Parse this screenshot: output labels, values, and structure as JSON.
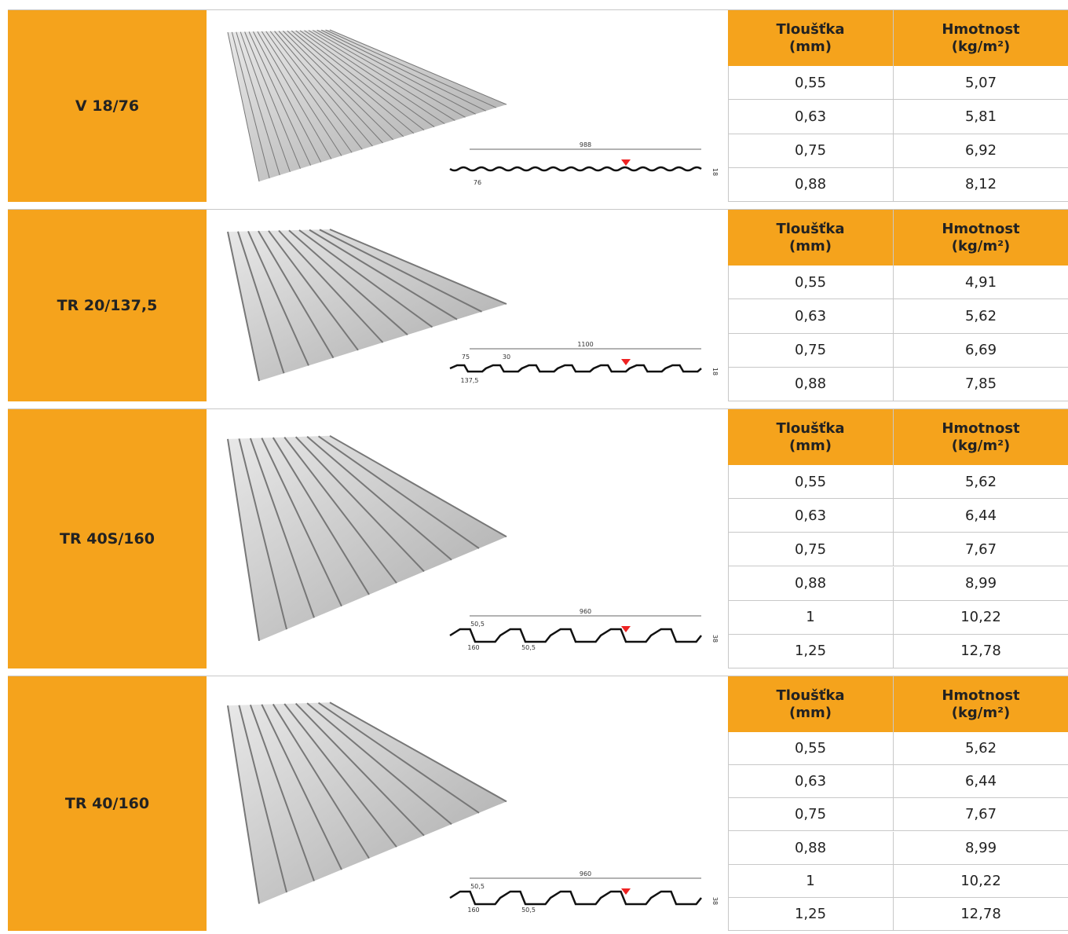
{
  "table_header": [
    "Tloušťka\n(mm)",
    "Hmotnost\n(kg/m²)"
  ],
  "sections": [
    {
      "name": "V 18/76",
      "dimensions": {
        "width": "988",
        "height": "18",
        "other": [
          "76"
        ]
      },
      "rows": [
        [
          "0,55",
          "5,07"
        ],
        [
          "0,63",
          "5,81"
        ],
        [
          "0,75",
          "6,92"
        ],
        [
          "0,88",
          "8,12"
        ]
      ]
    },
    {
      "name": "TR 20/137,5",
      "dimensions": {
        "width": "1100",
        "height": "18",
        "other": [
          "75",
          "30",
          "137,5"
        ]
      },
      "rows": [
        [
          "0,55",
          "4,91"
        ],
        [
          "0,63",
          "5,62"
        ],
        [
          "0,75",
          "6,69"
        ],
        [
          "0,88",
          "7,85"
        ]
      ]
    },
    {
      "name": "TR 40S/160",
      "dimensions": {
        "width": "960",
        "height": "38",
        "other": [
          "50,5",
          "160",
          "50,5"
        ]
      },
      "rows": [
        [
          "0,55",
          "5,62"
        ],
        [
          "0,63",
          "6,44"
        ],
        [
          "0,75",
          "7,67"
        ],
        [
          "0,88",
          "8,99"
        ],
        [
          "1",
          "10,22"
        ],
        [
          "1,25",
          "12,78"
        ]
      ]
    },
    {
      "name": "TR 40/160",
      "dimensions": {
        "width": "960",
        "height": "38",
        "other": [
          "50,5",
          "160",
          "50,5"
        ]
      },
      "rows": [
        [
          "0,55",
          "5,62"
        ],
        [
          "0,63",
          "6,44"
        ],
        [
          "0,75",
          "7,67"
        ],
        [
          "0,88",
          "8,99"
        ],
        [
          "1",
          "10,22"
        ],
        [
          "1,25",
          "12,78"
        ]
      ]
    }
  ]
}
